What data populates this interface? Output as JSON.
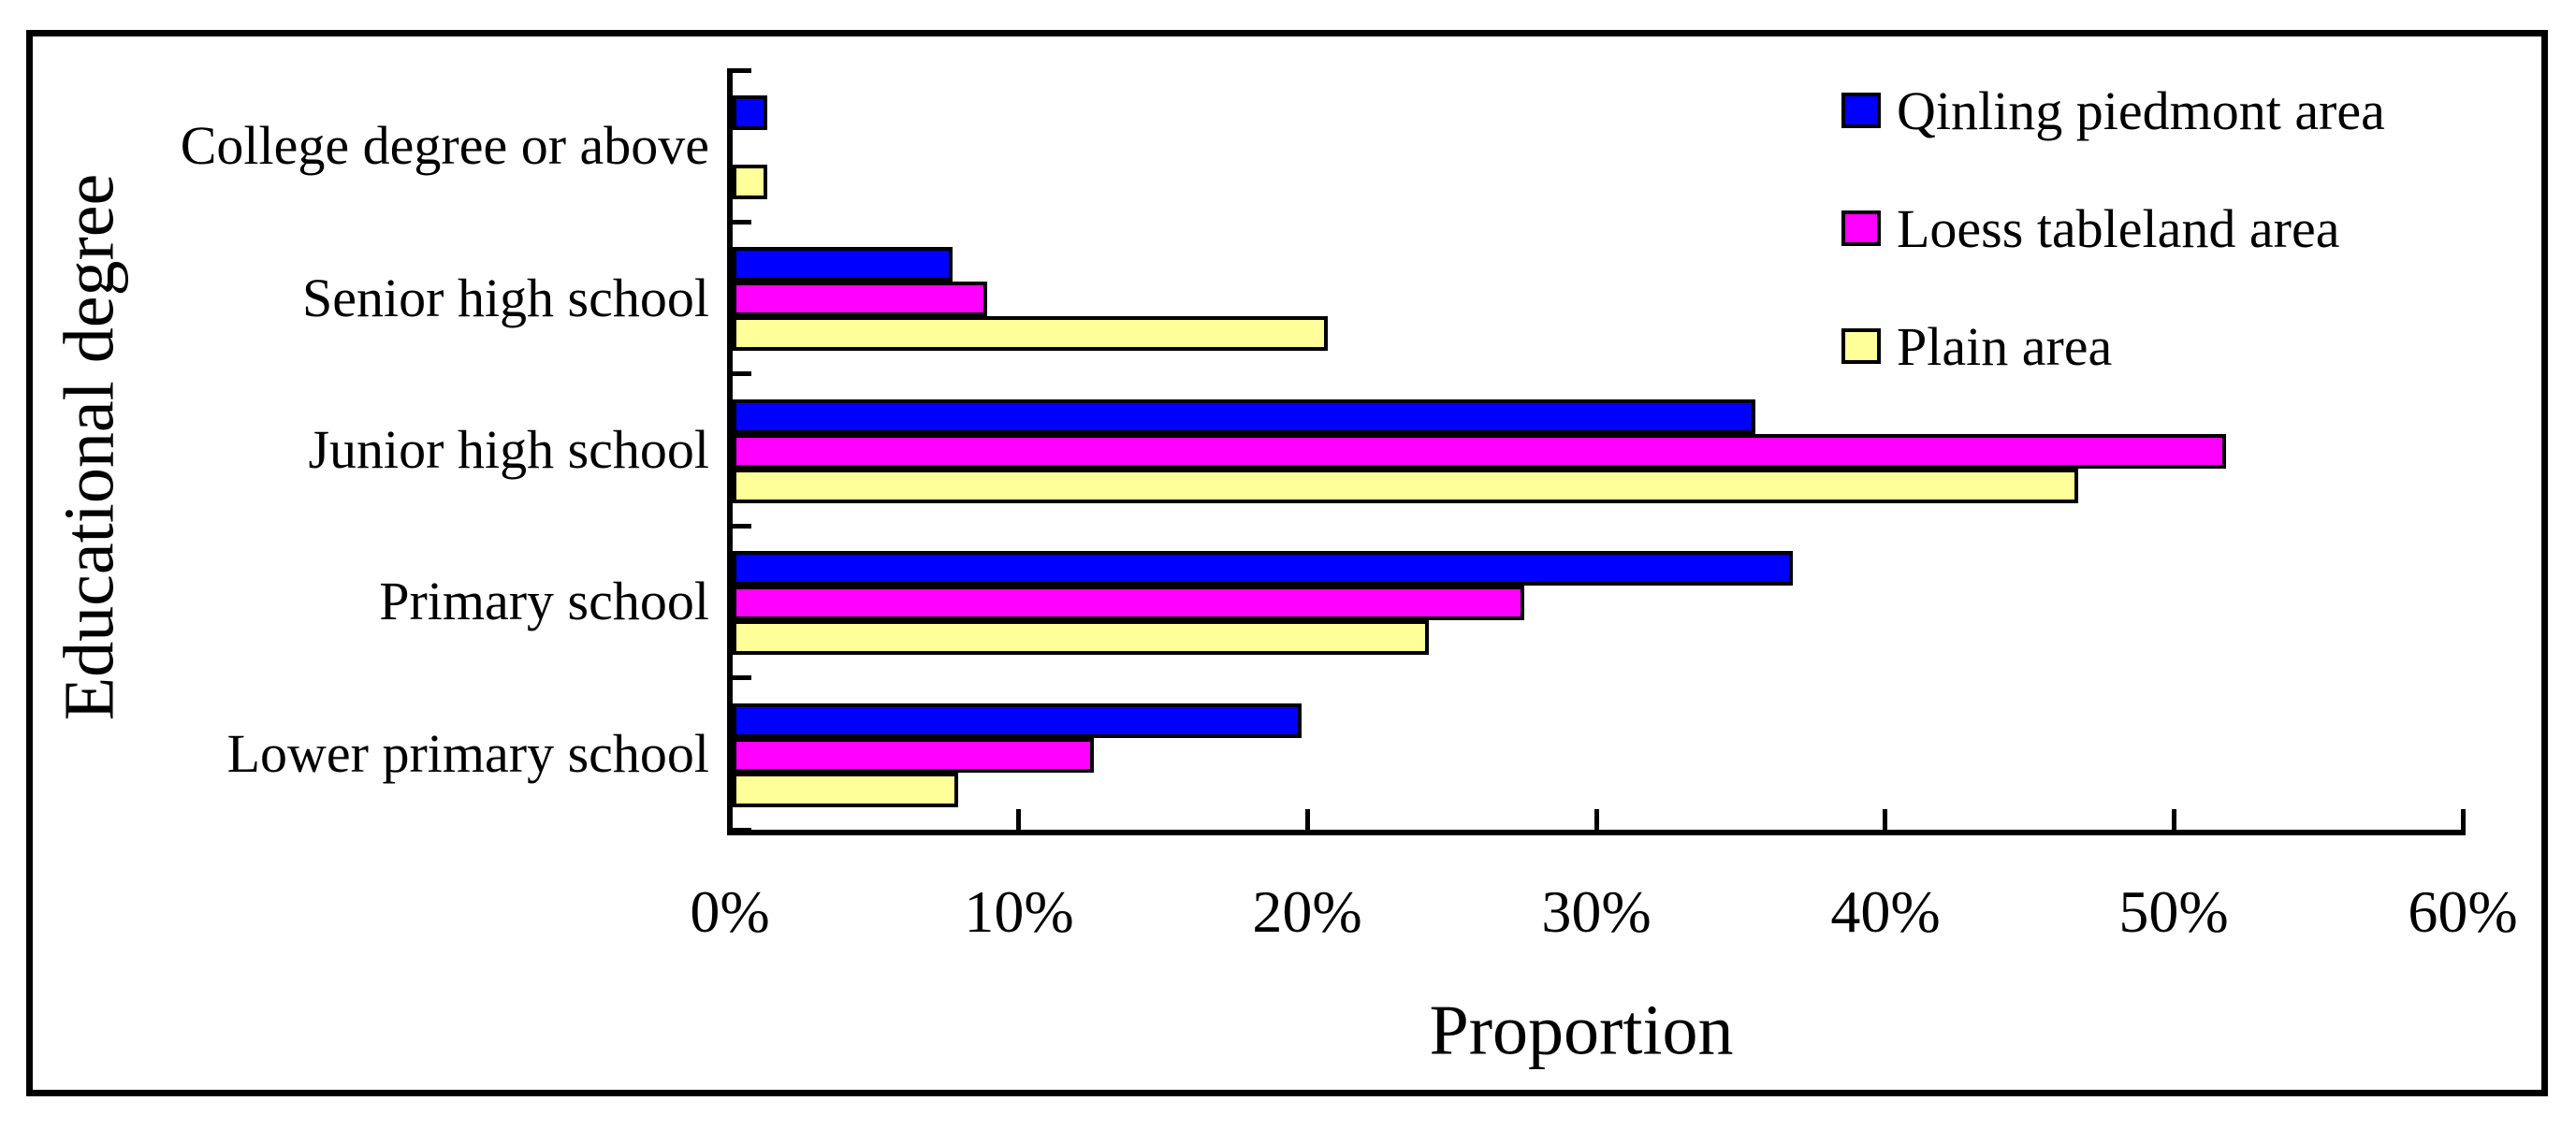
{
  "chart_data": {
    "type": "bar",
    "orientation": "horizontal",
    "xlabel": "Proportion",
    "ylabel": "Educational degree",
    "categories": [
      "College degree or above",
      "Senior high school",
      "Junior high school",
      "Primary school",
      "Lower primary school"
    ],
    "series": [
      {
        "name": "Qinling piedmont area",
        "color": "#0000FF",
        "values": [
          1.2,
          7.6,
          35.4,
          36.7,
          19.7
        ]
      },
      {
        "name": "Loess tableland area",
        "color": "#FF00FF",
        "values": [
          0,
          8.8,
          51.7,
          27.4,
          12.5
        ]
      },
      {
        "name": "Plain area",
        "color": "#FFFF99",
        "values": [
          1.2,
          20.6,
          46.6,
          24.1,
          7.8
        ]
      }
    ],
    "x_ticks": [
      "0%",
      "10%",
      "20%",
      "30%",
      "40%",
      "50%",
      "60%"
    ],
    "xlim": [
      0,
      60
    ],
    "x_tick_step": 10,
    "grid": false,
    "legend_position": "top-right",
    "frame_color": "#000000",
    "background": "#FFFFFF"
  }
}
